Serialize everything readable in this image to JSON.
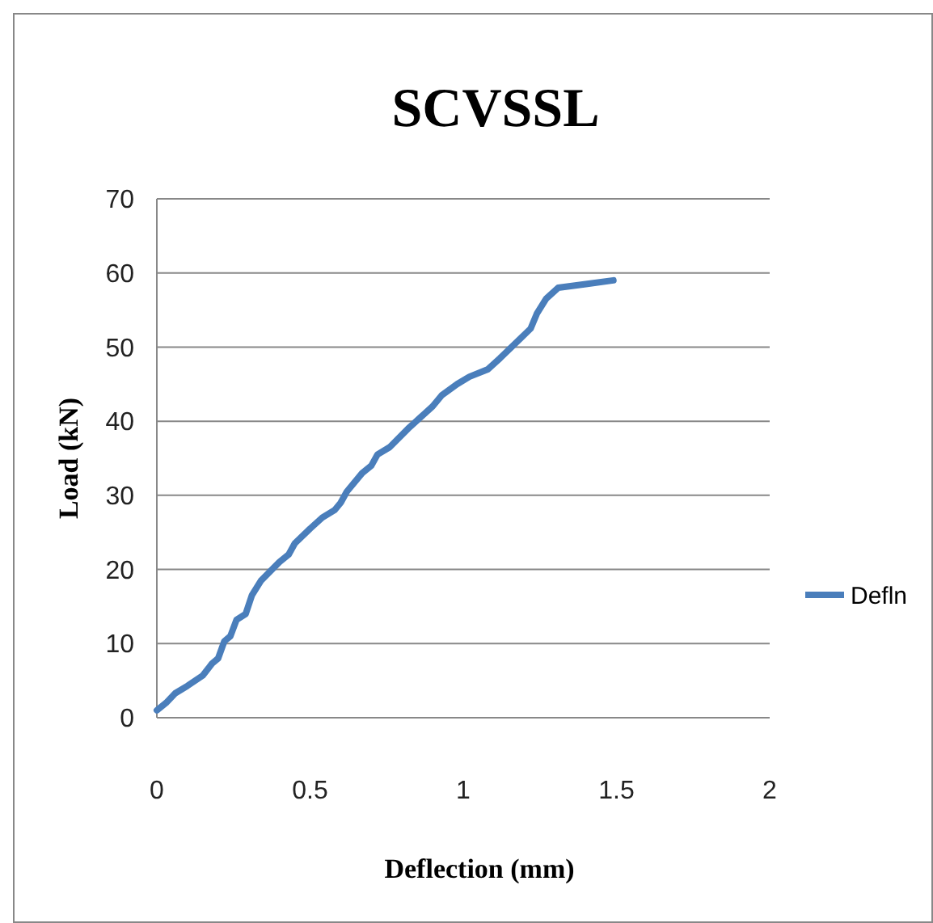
{
  "chart_data": {
    "type": "line",
    "title": "SCVSSL",
    "xlabel": "Deflection (mm)",
    "ylabel": "Load (kN)",
    "xlim": [
      0,
      2
    ],
    "xticks": [
      0,
      0.5,
      1,
      1.5,
      2
    ],
    "ylim": [
      0,
      70
    ],
    "yticks": [
      0,
      10,
      20,
      30,
      40,
      50,
      60,
      70
    ],
    "grid": "y",
    "legend": "right",
    "marker": "none",
    "line_style": "solid",
    "series": [
      {
        "name": "Defln",
        "color": "#4a7ebb",
        "x": [
          0,
          0.03,
          0.06,
          0.1,
          0.15,
          0.18,
          0.2,
          0.22,
          0.24,
          0.26,
          0.29,
          0.31,
          0.34,
          0.4,
          0.43,
          0.45,
          0.5,
          0.54,
          0.58,
          0.6,
          0.62,
          0.67,
          0.7,
          0.72,
          0.76,
          0.82,
          0.86,
          0.9,
          0.93,
          0.98,
          1.02,
          1.08,
          1.12,
          1.17,
          1.22,
          1.24,
          1.27,
          1.31,
          1.4,
          1.49
        ],
        "values": [
          1,
          2,
          3.3,
          4.3,
          5.7,
          7.3,
          8,
          10.3,
          11,
          13.2,
          14,
          16.5,
          18.5,
          21,
          22,
          23.5,
          25.5,
          27,
          28,
          29,
          30.5,
          33,
          34,
          35.5,
          36.5,
          39,
          40.5,
          42,
          43.5,
          45,
          46,
          47,
          48.5,
          50.5,
          52.5,
          54.5,
          56.5,
          58,
          58.5,
          59
        ]
      }
    ]
  }
}
